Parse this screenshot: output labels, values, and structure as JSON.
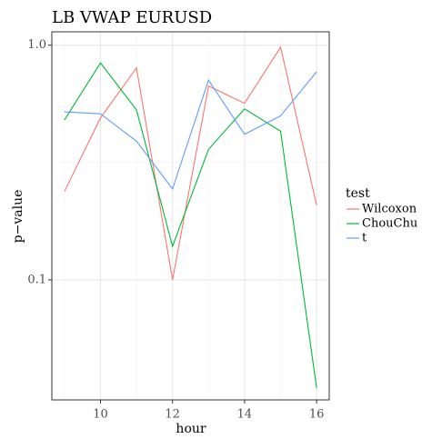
{
  "chart_data": {
    "type": "line",
    "title": "LB VWAP EURUSD",
    "x_label": "hour",
    "y_label": "p−value",
    "x": [
      9,
      10,
      11,
      12,
      13,
      14,
      15,
      16
    ],
    "series": [
      {
        "name": "Wilcoxon",
        "color": "#F8766D",
        "values": [
          0.238,
          0.49,
          0.8,
          0.1,
          0.67,
          0.565,
          0.98,
          0.208
        ]
      },
      {
        "name": "ChouChu",
        "color": "#00BA38",
        "values": [
          0.48,
          0.84,
          0.53,
          0.139,
          0.36,
          0.535,
          0.43,
          0.0346
        ]
      },
      {
        "name": "t",
        "color": "#619CFF",
        "values": [
          0.52,
          0.51,
          0.39,
          0.244,
          0.71,
          0.417,
          0.5,
          0.77
        ]
      }
    ],
    "legend_title": "test",
    "xlim": [
      8.65,
      16.35
    ],
    "xticks": [
      10,
      12,
      14,
      16
    ],
    "ylim": [
      0.0308,
      1.14
    ],
    "yticks": [
      0.1,
      {
        "value": 1,
        "label": "1.0"
      }
    ],
    "log_y": true,
    "grid": true
  }
}
